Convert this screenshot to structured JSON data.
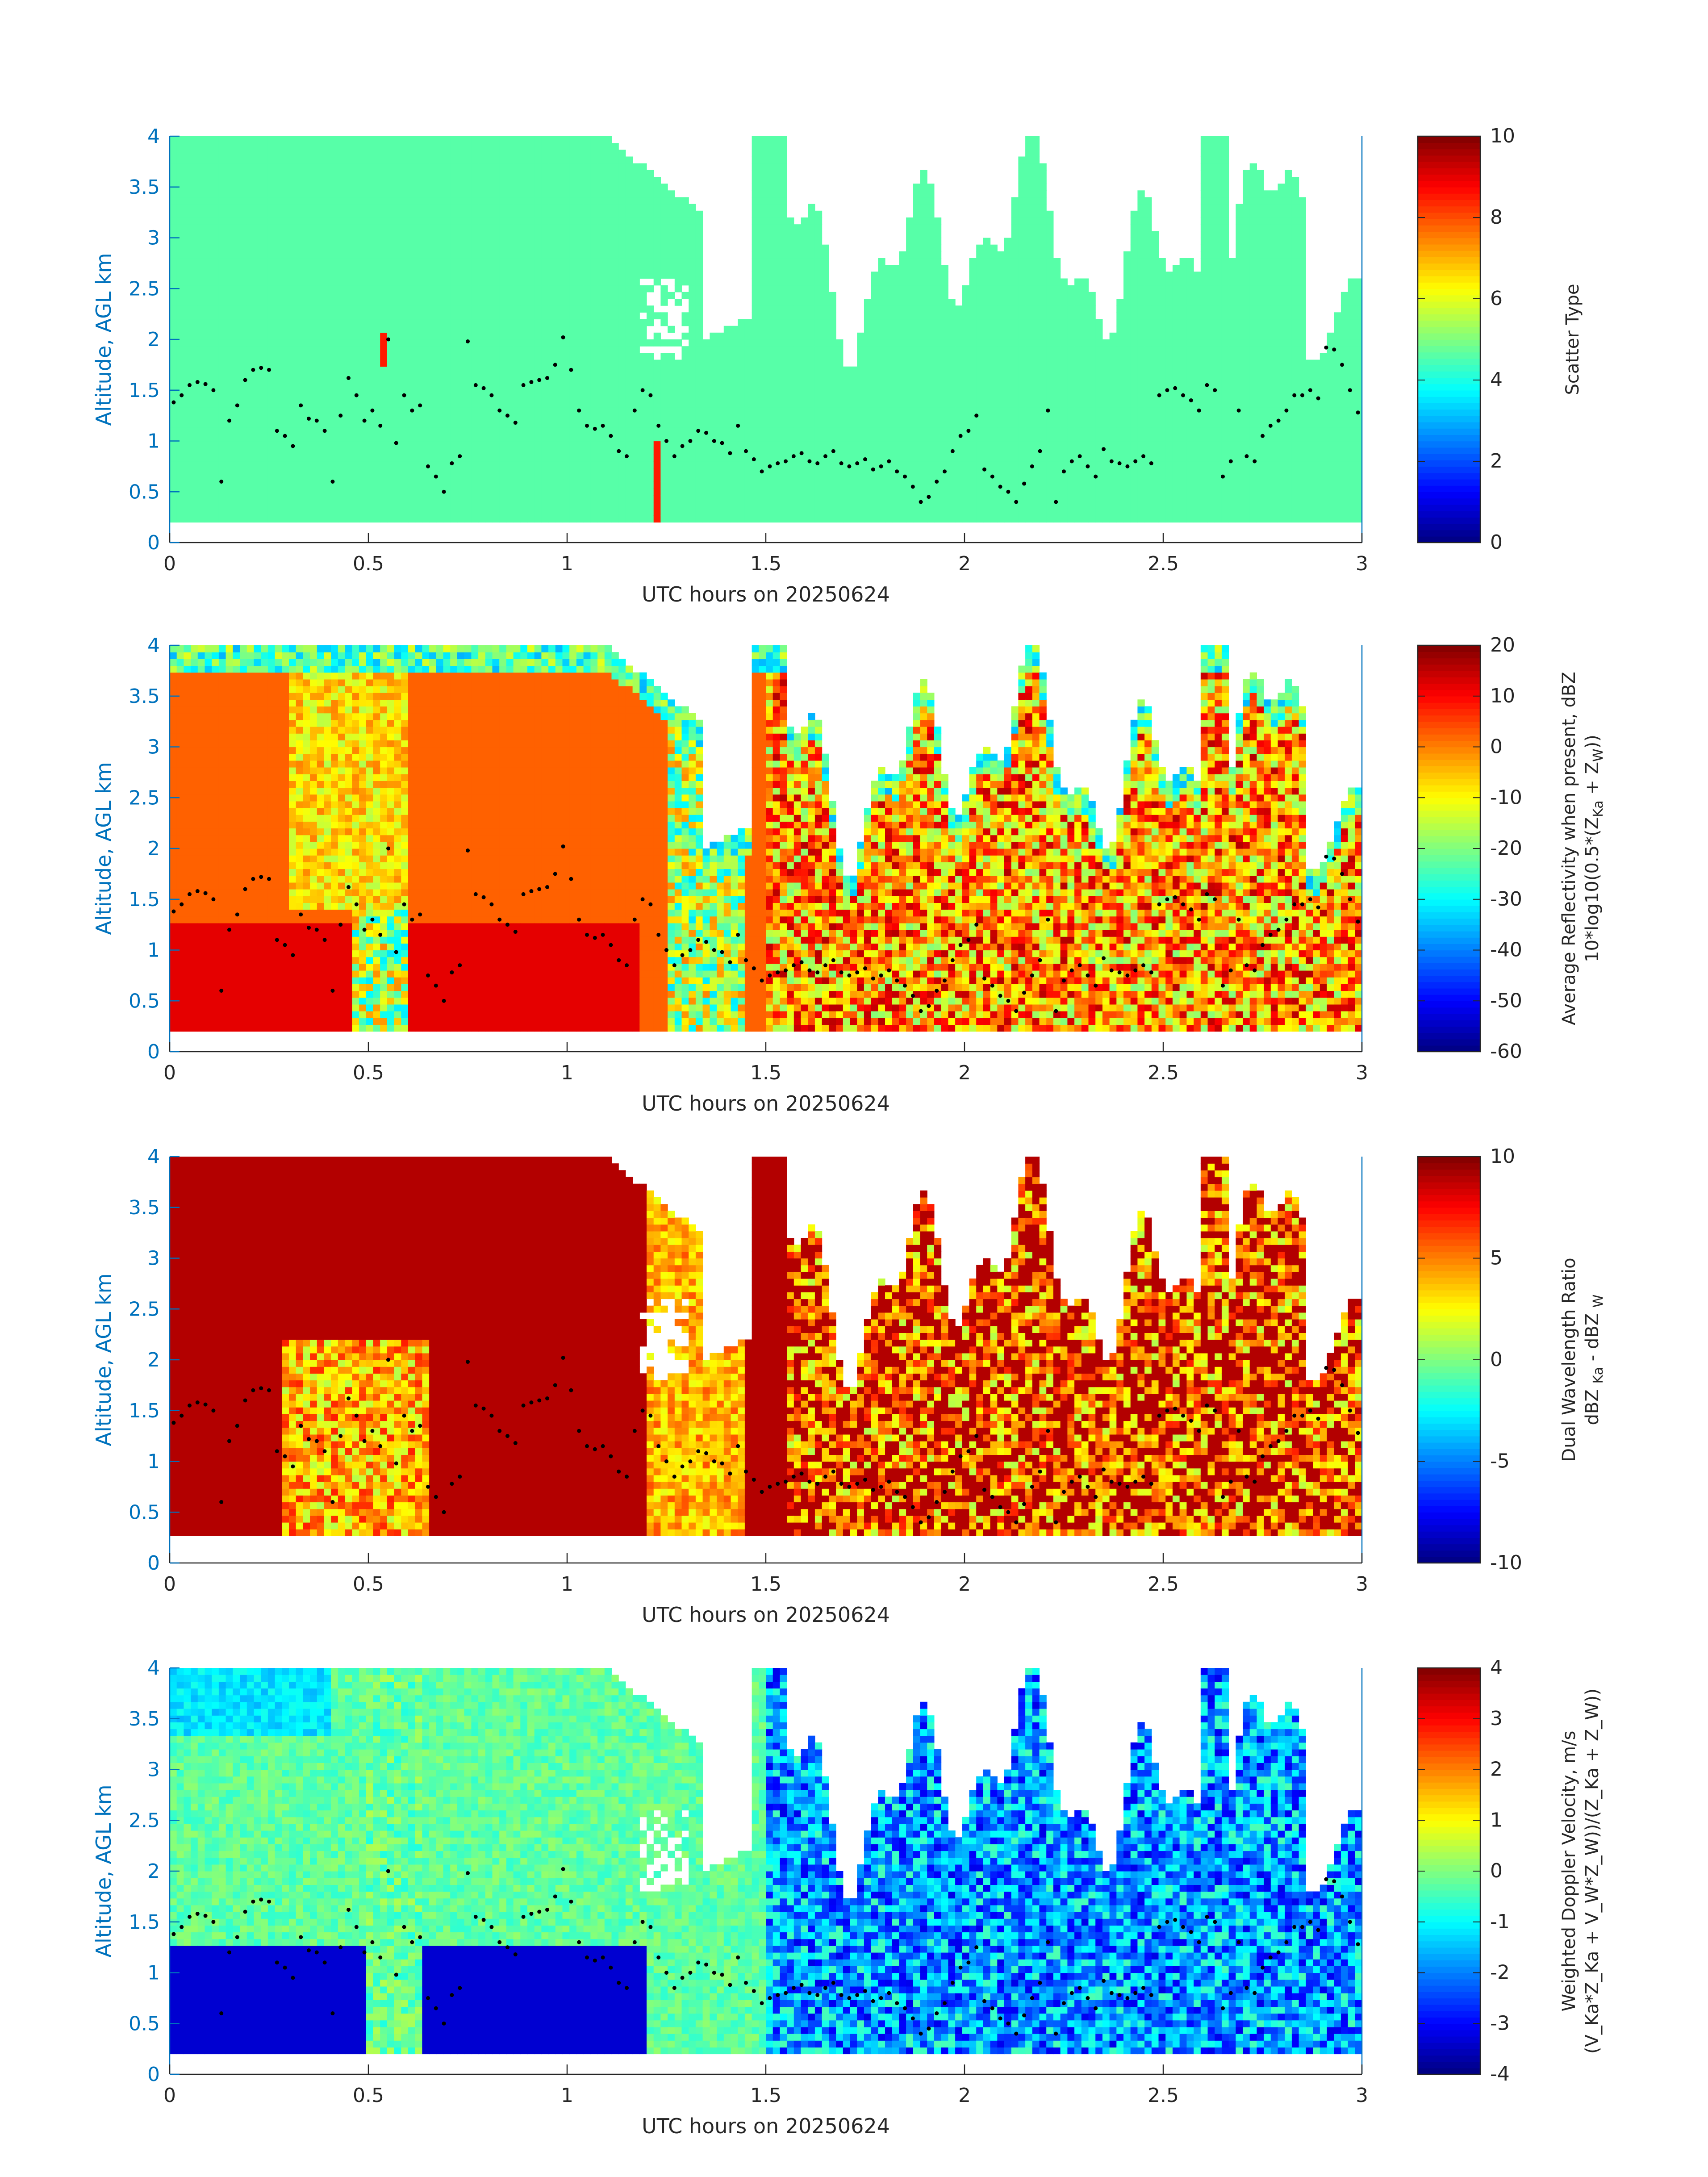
{
  "chart_data": [
    {
      "type": "heatmap",
      "panel": 1,
      "xlabel": "UTC hours on 20250624",
      "ylabel": "Altitude, AGL km",
      "xlim": [
        0,
        3
      ],
      "ylim": [
        0,
        4
      ],
      "x_ticks": [
        "0",
        "0.5",
        "1",
        "1.5",
        "2",
        "2.5",
        "3"
      ],
      "y_ticks": [
        "0",
        "0.5",
        "1",
        "1.5",
        "2",
        "2.5",
        "3",
        "3.5",
        "4"
      ],
      "colorbar": {
        "label": "Scatter Type",
        "label_line2": "",
        "range": [
          0,
          10
        ],
        "ticks": [
          "0",
          "2",
          "4",
          "6",
          "8",
          "10"
        ],
        "colormap": "jet"
      },
      "description_values": {
        "dominant_value": 3.7,
        "cloud_base_km": 0.18
      },
      "has_overlay_dots": true
    },
    {
      "type": "heatmap",
      "panel": 2,
      "xlabel": "UTC hours on 20250624",
      "ylabel": "Altitude, AGL km",
      "xlim": [
        0,
        3
      ],
      "ylim": [
        0,
        4
      ],
      "x_ticks": [
        "0",
        "0.5",
        "1",
        "1.5",
        "2",
        "2.5",
        "3"
      ],
      "y_ticks": [
        "0",
        "0.5",
        "1",
        "1.5",
        "2",
        "2.5",
        "3",
        "3.5",
        "4"
      ],
      "colorbar": {
        "label": "Average Reflectivity when present, dBZ",
        "label_line2_pre": "10*log10(0.5*(Z",
        "label_line2_sub1": "Ka",
        "label_line2_mid": " + Z",
        "label_line2_sub2": "W",
        "label_line2_post": "))",
        "range": [
          -60,
          20
        ],
        "ticks": [
          "-60",
          "-50",
          "-40",
          "-30",
          "-20",
          "-10",
          "0",
          "10",
          "20"
        ],
        "colormap": "jet"
      },
      "has_overlay_dots": true
    },
    {
      "type": "heatmap",
      "panel": 3,
      "xlabel": "UTC hours on 20250624",
      "ylabel": "Altitude, AGL km",
      "xlim": [
        0,
        3
      ],
      "ylim": [
        0,
        4
      ],
      "x_ticks": [
        "0",
        "0.5",
        "1",
        "1.5",
        "2",
        "2.5",
        "3"
      ],
      "y_ticks": [
        "0",
        "0.5",
        "1",
        "1.5",
        "2",
        "2.5",
        "3",
        "3.5",
        "4"
      ],
      "colorbar": {
        "label": "Dual Wavelength Ratio",
        "label_line2_pre": "dBZ ",
        "label_line2_sub1": "Ka",
        "label_line2_mid": " - dBZ ",
        "label_line2_sub2": "W",
        "label_line2_post": "",
        "range": [
          -10,
          10
        ],
        "ticks": [
          "-10",
          "-5",
          "0",
          "5",
          "10"
        ],
        "colormap": "jet"
      },
      "has_overlay_dots": true
    },
    {
      "type": "heatmap",
      "panel": 4,
      "xlabel": "UTC hours on 20250624",
      "ylabel": "Altitude, AGL km",
      "xlim": [
        0,
        3
      ],
      "ylim": [
        0,
        4
      ],
      "x_ticks": [
        "0",
        "0.5",
        "1",
        "1.5",
        "2",
        "2.5",
        "3"
      ],
      "y_ticks": [
        "0",
        "0.5",
        "1",
        "1.5",
        "2",
        "2.5",
        "3",
        "3.5",
        "4"
      ],
      "colorbar": {
        "label": "Weighted Doppler Velocity, m/s",
        "label_line2": "(V_Ka*Z_Ka + V_W*Z_W))/(Z_Ka + Z_W))",
        "range": [
          -4,
          4
        ],
        "ticks": [
          "-4",
          "-3",
          "-2",
          "-1",
          "0",
          "1",
          "2",
          "3",
          "4"
        ],
        "colormap": "jet"
      },
      "has_overlay_dots": true
    }
  ],
  "overlay_dots": {
    "x": [
      0.01,
      0.03,
      0.05,
      0.07,
      0.09,
      0.11,
      0.13,
      0.15,
      0.17,
      0.19,
      0.21,
      0.23,
      0.25,
      0.27,
      0.29,
      0.31,
      0.33,
      0.35,
      0.37,
      0.39,
      0.41,
      0.43,
      0.45,
      0.47,
      0.49,
      0.51,
      0.53,
      0.55,
      0.57,
      0.59,
      0.61,
      0.63,
      0.65,
      0.67,
      0.69,
      0.71,
      0.73,
      0.75,
      0.77,
      0.79,
      0.81,
      0.83,
      0.85,
      0.87,
      0.89,
      0.91,
      0.93,
      0.95,
      0.97,
      0.99,
      1.01,
      1.03,
      1.05,
      1.07,
      1.09,
      1.11,
      1.13,
      1.15,
      1.17,
      1.19,
      1.21,
      1.23,
      1.25,
      1.27,
      1.29,
      1.31,
      1.33,
      1.35,
      1.37,
      1.39,
      1.41,
      1.43,
      1.45,
      1.47,
      1.49,
      1.51,
      1.53,
      1.55,
      1.57,
      1.59,
      1.61,
      1.63,
      1.65,
      1.67,
      1.69,
      1.71,
      1.73,
      1.75,
      1.77,
      1.79,
      1.81,
      1.83,
      1.85,
      1.87,
      1.89,
      1.91,
      1.93,
      1.95,
      1.97,
      1.99,
      2.01,
      2.03,
      2.05,
      2.07,
      2.09,
      2.11,
      2.13,
      2.15,
      2.17,
      2.19,
      2.21,
      2.23,
      2.25,
      2.27,
      2.29,
      2.31,
      2.33,
      2.35,
      2.37,
      2.39,
      2.41,
      2.43,
      2.45,
      2.47,
      2.49,
      2.51,
      2.53,
      2.55,
      2.57,
      2.59,
      2.61,
      2.63,
      2.65,
      2.67,
      2.69,
      2.71,
      2.73,
      2.75,
      2.77,
      2.79,
      2.81,
      2.83,
      2.85,
      2.87,
      2.89,
      2.91,
      2.93,
      2.95,
      2.97,
      2.99
    ],
    "y": [
      1.38,
      1.45,
      1.55,
      1.58,
      1.56,
      1.5,
      0.6,
      1.2,
      1.35,
      1.6,
      1.7,
      1.72,
      1.7,
      1.1,
      1.05,
      0.95,
      1.35,
      1.22,
      1.2,
      1.1,
      0.6,
      1.25,
      1.62,
      1.45,
      1.2,
      1.3,
      1.15,
      2.0,
      0.98,
      1.45,
      1.3,
      1.35,
      0.75,
      0.65,
      0.5,
      0.78,
      0.85,
      1.98,
      1.55,
      1.52,
      1.45,
      1.3,
      1.25,
      1.18,
      1.55,
      1.58,
      1.6,
      1.62,
      1.75,
      2.02,
      1.7,
      1.3,
      1.15,
      1.12,
      1.15,
      1.05,
      0.9,
      0.85,
      1.3,
      1.5,
      1.45,
      1.15,
      1.0,
      0.85,
      0.95,
      1.0,
      1.1,
      1.08,
      1.0,
      0.98,
      0.88,
      1.15,
      0.9,
      0.82,
      0.7,
      0.75,
      0.78,
      0.8,
      0.85,
      0.88,
      0.8,
      0.78,
      0.85,
      0.9,
      0.78,
      0.75,
      0.78,
      0.82,
      0.72,
      0.75,
      0.8,
      0.7,
      0.65,
      0.55,
      0.4,
      0.45,
      0.6,
      0.7,
      0.9,
      1.05,
      1.1,
      1.25,
      0.72,
      0.65,
      0.55,
      0.5,
      0.4,
      0.58,
      0.75,
      0.9,
      1.3,
      0.4,
      0.7,
      0.8,
      0.85,
      0.75,
      0.65,
      0.92,
      0.8,
      0.78,
      0.75,
      0.8,
      0.85,
      0.78,
      1.45,
      1.5,
      1.52,
      1.45,
      1.4,
      1.3,
      1.55,
      1.5,
      0.65,
      0.8,
      1.3,
      0.85,
      0.8,
      1.05,
      1.15,
      1.2,
      1.3,
      1.45,
      1.45,
      1.5,
      1.42,
      1.92,
      1.9,
      1.75,
      1.5,
      1.28
    ]
  }
}
